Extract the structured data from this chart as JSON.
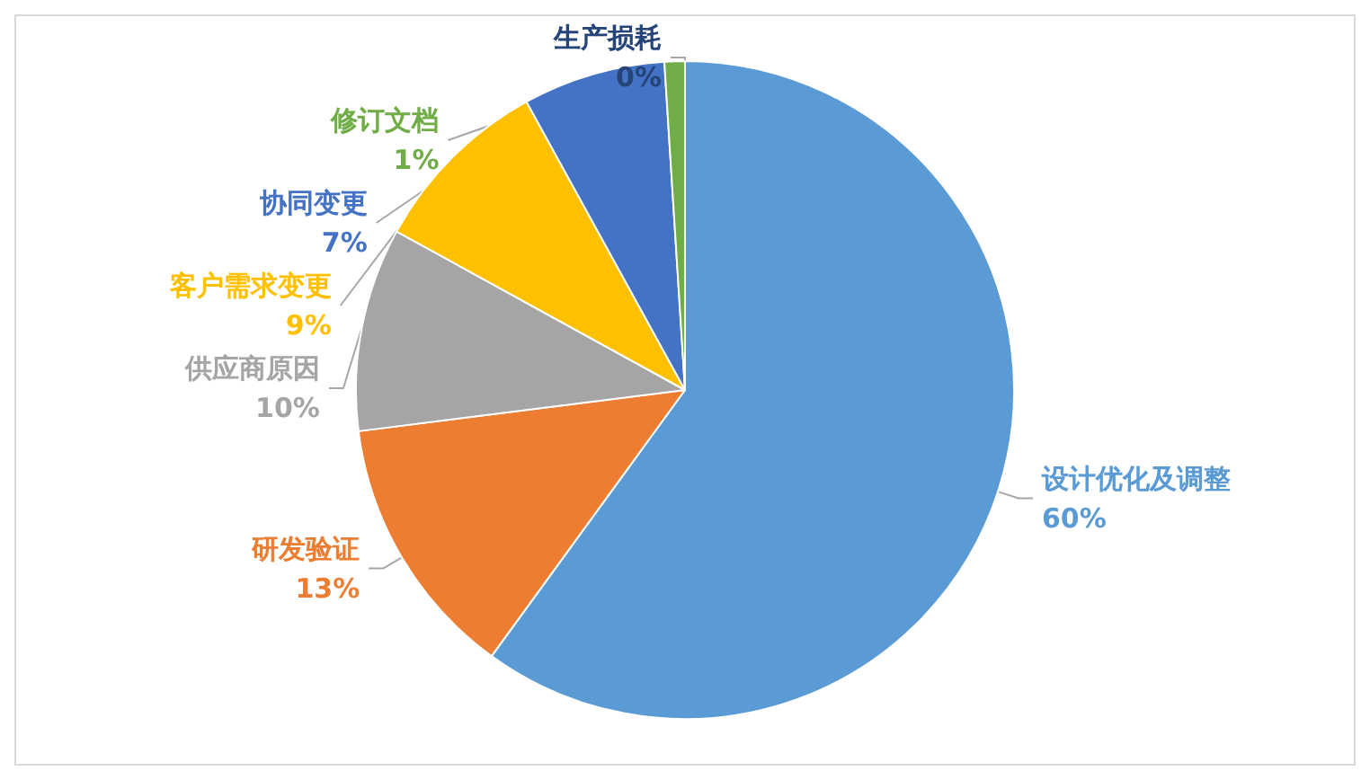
{
  "chart_data": {
    "type": "pie",
    "categories": [
      "设计优化及调整",
      "研发验证",
      "供应商原因",
      "客户需求变更",
      "协同变更",
      "修订文档",
      "生产损耗"
    ],
    "values": [
      60,
      13,
      10,
      9,
      7,
      1,
      0
    ],
    "value_labels": [
      "60%",
      "13%",
      "10%",
      "9%",
      "7%",
      "1%",
      "0%"
    ],
    "colors": [
      "#5b9bd5",
      "#ed7d31",
      "#a5a5a5",
      "#ffc000",
      "#4472c4",
      "#70ad47",
      "#264478"
    ],
    "legend": false
  }
}
